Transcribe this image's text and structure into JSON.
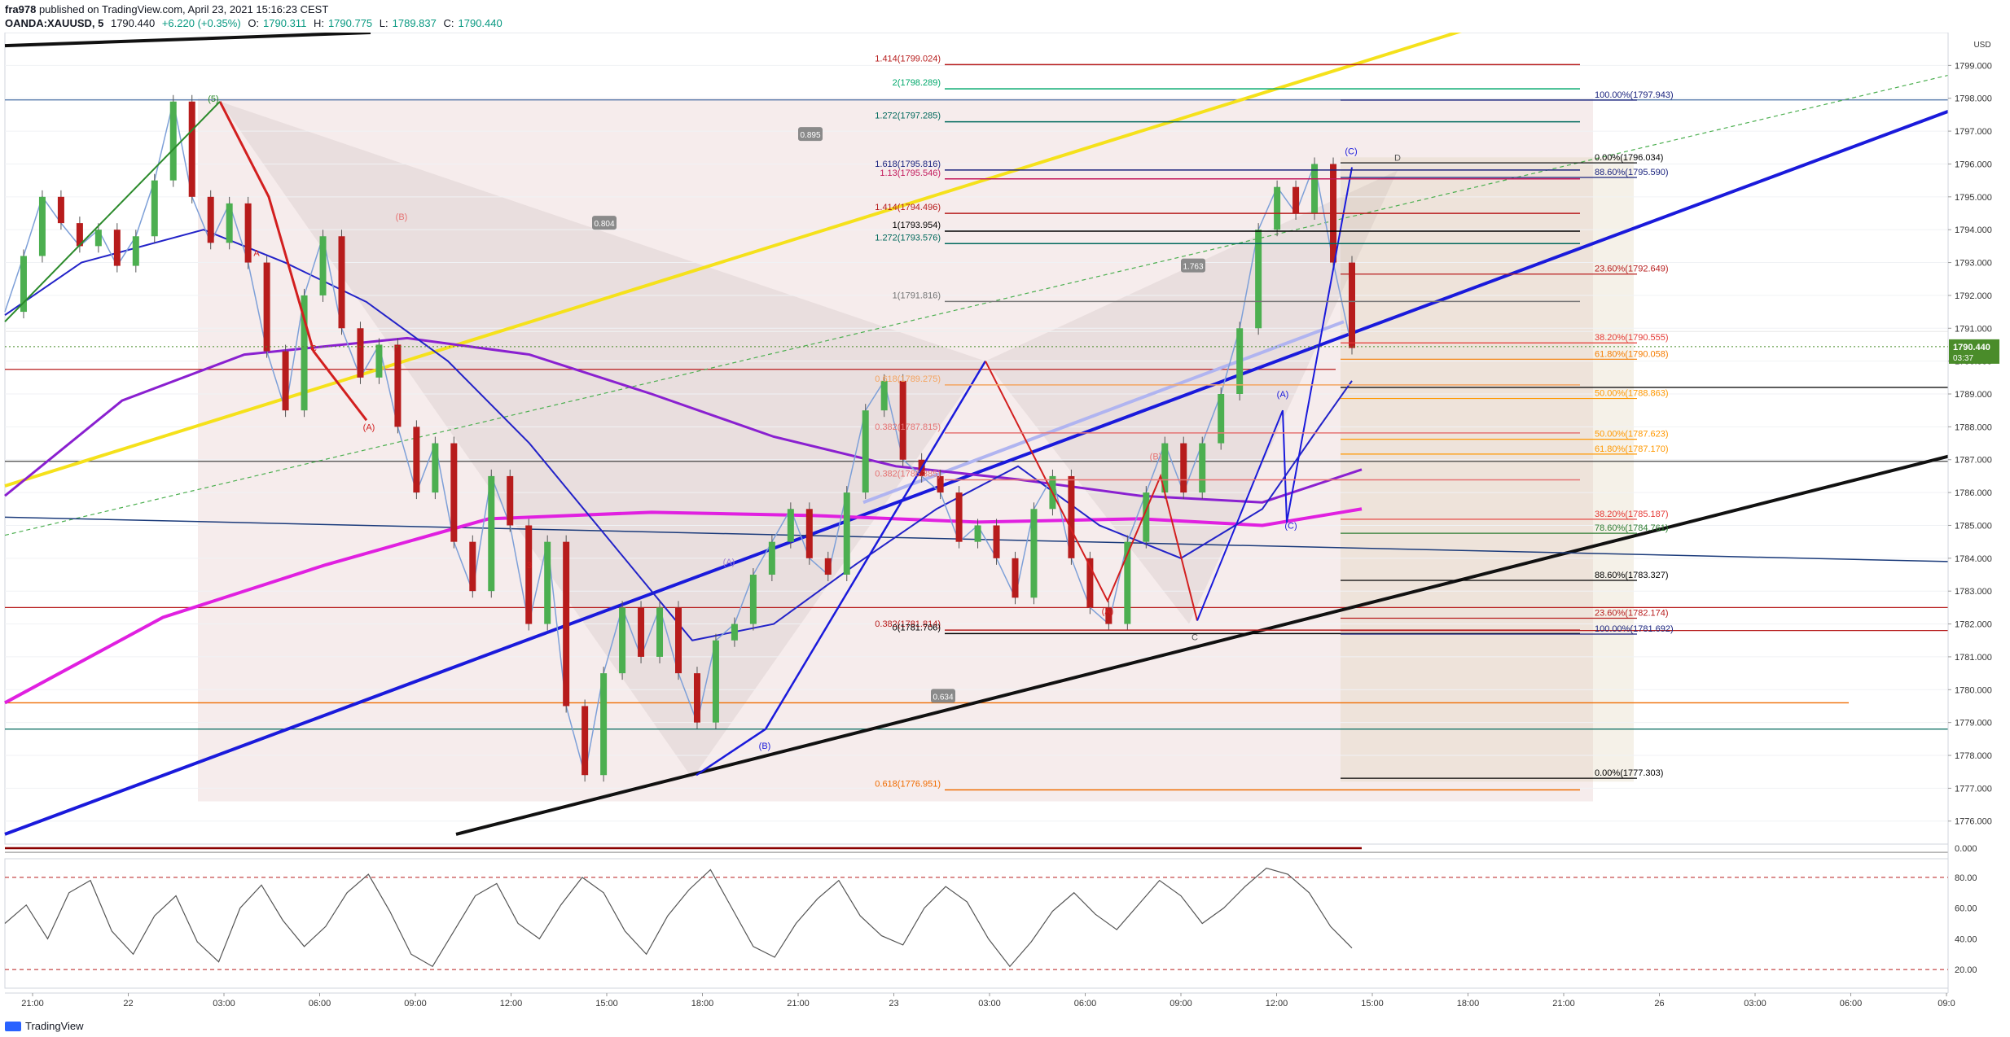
{
  "header": {
    "publisher": "fra978",
    "published_text": "published on TradingView.com, April 23, 2021 15:16:23 CEST",
    "symbol": "OANDA:XAUUSD, 5",
    "last": "1790.440",
    "change": "+6.220 (+0.35%)",
    "open_label": "O:",
    "open": "1790.311",
    "high_label": "H:",
    "high": "1790.775",
    "low_label": "L:",
    "low": "1789.837",
    "close_label": "C:",
    "close": "1790.440"
  },
  "footer": {
    "brand": "TradingView"
  },
  "chart_data": {
    "type": "line",
    "title": "OANDA:XAUUSD, 5",
    "currency": "USD",
    "current_price": "1790.440",
    "countdown": "03:37",
    "y_range": [
      1775.3,
      1800.0
    ],
    "y_ticks": [
      "1799.000",
      "1798.000",
      "1797.000",
      "1796.000",
      "1795.000",
      "1794.000",
      "1793.000",
      "1792.000",
      "1791.000",
      "1790.000",
      "1789.000",
      "1788.000",
      "1787.000",
      "1786.000",
      "1785.000",
      "1784.000",
      "1783.000",
      "1782.000",
      "1781.000",
      "1780.000",
      "1779.000",
      "1778.000",
      "1777.000",
      "1776.000"
    ],
    "x_ticks": [
      "21:00",
      "22",
      "03:00",
      "06:00",
      "09:00",
      "12:00",
      "15:00",
      "18:00",
      "21:00",
      "23",
      "03:00",
      "06:00",
      "09:00",
      "12:00",
      "15:00",
      "18:00",
      "21:00",
      "26",
      "03:00",
      "06:00",
      "09:0"
    ],
    "price_path": [
      1791.5,
      1793.2,
      1795.0,
      1794.2,
      1793.5,
      1794.0,
      1792.9,
      1793.8,
      1795.5,
      1797.9,
      1795.0,
      1793.6,
      1794.8,
      1793.0,
      1790.3,
      1788.5,
      1792.0,
      1793.8,
      1791.0,
      1789.5,
      1790.5,
      1788.0,
      1786.0,
      1787.5,
      1784.5,
      1783.0,
      1786.5,
      1785.0,
      1782.0,
      1784.5,
      1779.5,
      1777.4,
      1780.5,
      1782.5,
      1781.0,
      1782.5,
      1780.5,
      1779.0,
      1781.5,
      1782.0,
      1783.5,
      1784.5,
      1785.5,
      1784.0,
      1783.5,
      1786.0,
      1788.5,
      1789.4,
      1787.0,
      1786.5,
      1786.0,
      1784.5,
      1785.0,
      1784.0,
      1782.8,
      1785.5,
      1786.5,
      1784.0,
      1782.5,
      1782.0,
      1784.5,
      1786.0,
      1787.5,
      1786.0,
      1787.5,
      1789.0,
      1791.0,
      1794.0,
      1795.3,
      1794.5,
      1796.0,
      1793.0,
      1790.4
    ],
    "fib_labels_left": [
      {
        "text": "1.414(1799.024)",
        "price": 1799.024,
        "color": "#b71c1c"
      },
      {
        "text": "2(1798.289)",
        "price": 1798.289,
        "color": "#00a86b"
      },
      {
        "text": "1.272(1797.285)",
        "price": 1797.285,
        "color": "#00695c"
      },
      {
        "text": "1.13(1795.546)",
        "price": 1795.546,
        "color": "#c2185b"
      },
      {
        "text": "1.618(1795.816)",
        "price": 1795.816,
        "color": "#1a237e"
      },
      {
        "text": "1.414(1794.496)",
        "price": 1794.496,
        "color": "#b71c1c"
      },
      {
        "text": "1(1793.954)",
        "price": 1793.954,
        "color": "#000000"
      },
      {
        "text": "1.272(1793.576)",
        "price": 1793.576,
        "color": "#00695c"
      },
      {
        "text": "1(1791.816)",
        "price": 1791.816,
        "color": "#757575"
      },
      {
        "text": "0.618(1789.275)",
        "price": 1789.275,
        "color": "#f4a460"
      },
      {
        "text": "0.382(1787.815)",
        "price": 1787.815,
        "color": "#e57373"
      },
      {
        "text": "0.382(1786.385)",
        "price": 1786.385,
        "color": "#e57373"
      },
      {
        "text": "0.382(1781.814)",
        "price": 1781.814,
        "color": "#b71c1c"
      },
      {
        "text": "0(1781.706)",
        "price": 1781.706,
        "color": "#000000"
      },
      {
        "text": "0.618(1776.951)",
        "price": 1776.951,
        "color": "#ef6c00"
      }
    ],
    "fib_labels_right": [
      {
        "text": "100.00%(1797.943)",
        "price": 1797.943,
        "color": "#1a237e"
      },
      {
        "text": "0.00%(1796.034)",
        "price": 1796.034,
        "color": "#000000"
      },
      {
        "text": "88.60%(1795.590)",
        "price": 1795.59,
        "color": "#1a237e"
      },
      {
        "text": "23.60%(1792.649)",
        "price": 1792.649,
        "color": "#b71c1c"
      },
      {
        "text": "38.20%(1790.555)",
        "price": 1790.555,
        "color": "#e53935"
      },
      {
        "text": "61.80%(1790.058)",
        "price": 1790.058,
        "color": "#f57c00"
      },
      {
        "text": "50.00%(1788.863)",
        "price": 1788.863,
        "color": "#ff9800"
      },
      {
        "text": "50.00%(1787.623)",
        "price": 1787.623,
        "color": "#ff9800"
      },
      {
        "text": "61.80%(1787.170)",
        "price": 1787.17,
        "color": "#ff9800"
      },
      {
        "text": "38.20%(1785.187)",
        "price": 1785.187,
        "color": "#e53935"
      },
      {
        "text": "78.60%(1784.761)",
        "price": 1784.761,
        "color": "#2e7d32"
      },
      {
        "text": "88.60%(1783.327)",
        "price": 1783.327,
        "color": "#000000"
      },
      {
        "text": "23.60%(1782.174)",
        "price": 1782.174,
        "color": "#b71c1c"
      },
      {
        "text": "100.00%(1781.692)",
        "price": 1781.692,
        "color": "#1a237e"
      },
      {
        "text": "0.00%(1777.303)",
        "price": 1777.303,
        "color": "#000000"
      }
    ],
    "badges": [
      "0.895",
      "0.804",
      "1.763",
      "0.634"
    ],
    "wave_labels": [
      "(5)",
      "A",
      "C",
      "(A)",
      "(B)",
      "3",
      "(A)",
      "(B)",
      "(C)",
      "(A)",
      "(B)",
      "(A)",
      "(C)",
      "D",
      "C"
    ],
    "oscillator": {
      "levels": [
        "80.00",
        "60.00",
        "40.00",
        "20.00"
      ],
      "top_value": "0.000",
      "values": [
        50,
        62,
        40,
        70,
        78,
        45,
        30,
        55,
        68,
        38,
        25,
        60,
        75,
        52,
        35,
        48,
        70,
        82,
        58,
        30,
        22,
        45,
        68,
        76,
        50,
        40,
        62,
        80,
        70,
        45,
        30,
        55,
        72,
        85,
        60,
        35,
        28,
        50,
        66,
        78,
        55,
        42,
        36,
        60,
        74,
        64,
        40,
        22,
        38,
        58,
        70,
        56,
        46,
        62,
        78,
        68,
        50,
        60,
        74,
        86,
        82,
        70,
        48,
        34
      ]
    },
    "colors": {
      "price_axis_bg": "#4a8c2a",
      "blue_channel": "#1a1adb",
      "black_trendline": "#111111",
      "yellow_trendline": "#f5e11b",
      "magenta_ma": "#e020e0",
      "purple_ma": "#8a20d0"
    }
  }
}
